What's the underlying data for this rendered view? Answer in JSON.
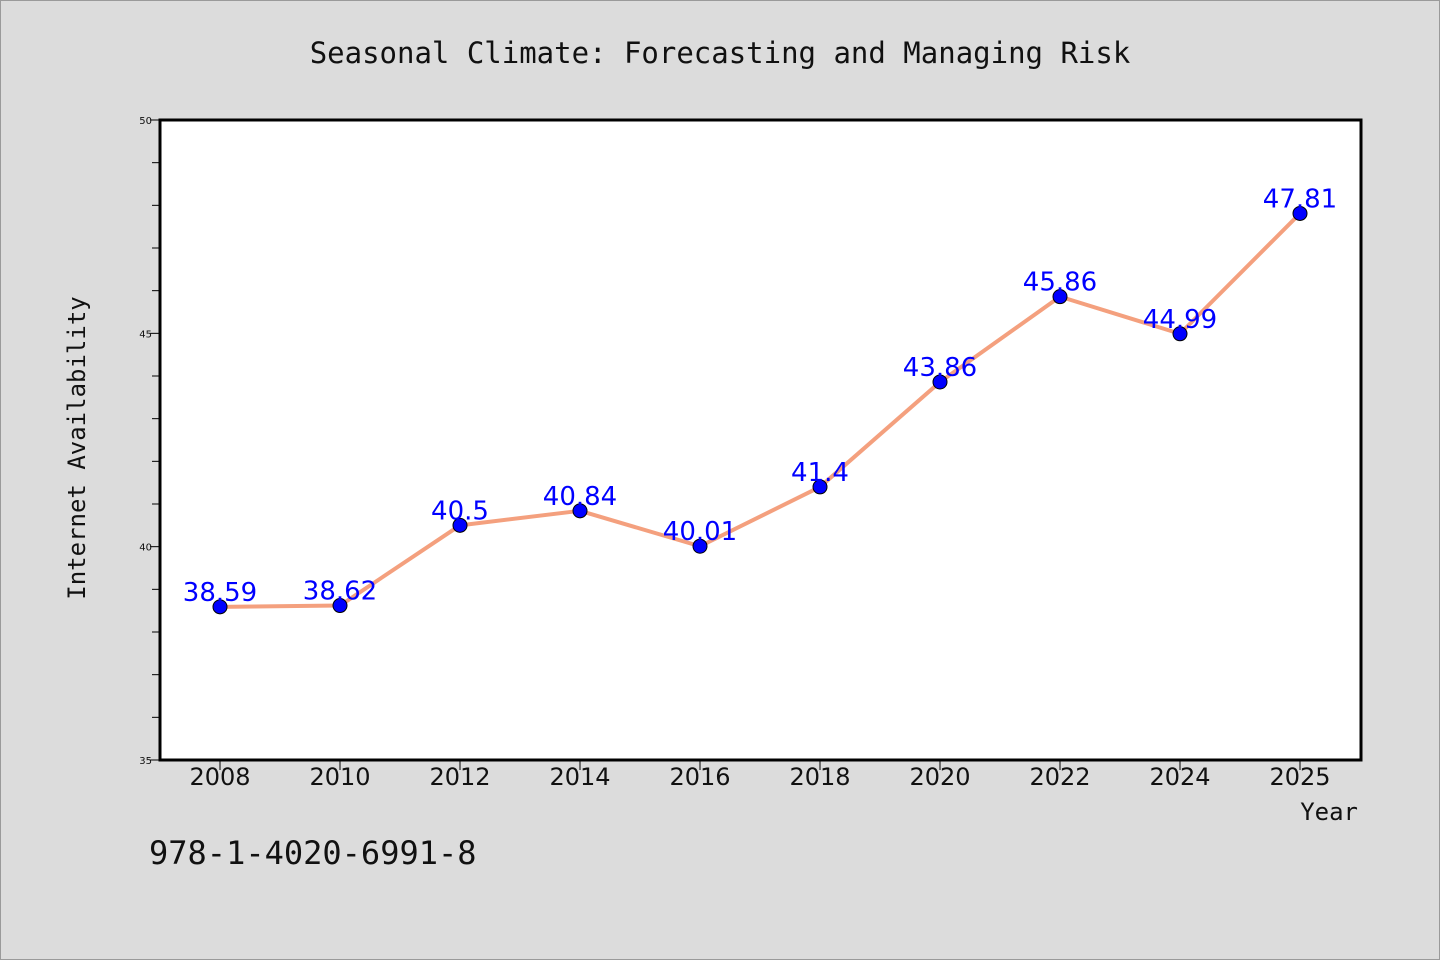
{
  "chart_data": {
    "type": "line",
    "title": "Seasonal Climate: Forecasting and Managing Risk",
    "xlabel": "Year",
    "ylabel": "Internet Availability",
    "categories": [
      "2008",
      "2010",
      "2012",
      "2014",
      "2016",
      "2018",
      "2020",
      "2022",
      "2024",
      "2025"
    ],
    "series": [
      {
        "values": [
          38.59,
          38.62,
          40.5,
          40.84,
          40.01,
          41.4,
          43.86,
          45.86,
          44.99,
          47.81
        ],
        "labels": [
          "38.59",
          "38.62",
          "40.5",
          "40.84",
          "40.01",
          "41.4",
          "43.86",
          "45.86",
          "44.99",
          "47.81"
        ]
      }
    ],
    "ylim": [
      35,
      50
    ],
    "yticks": [
      "35",
      "40",
      "45",
      "50"
    ],
    "grid": false,
    "line_color": "#f4a07e",
    "marker_color": "#0000ff",
    "label_color": "#0000ff",
    "background_color": "#dcdcdc",
    "plot_background_color": "#ffffff"
  },
  "footer": {
    "isbn": "978-1-4020-6991-8"
  }
}
